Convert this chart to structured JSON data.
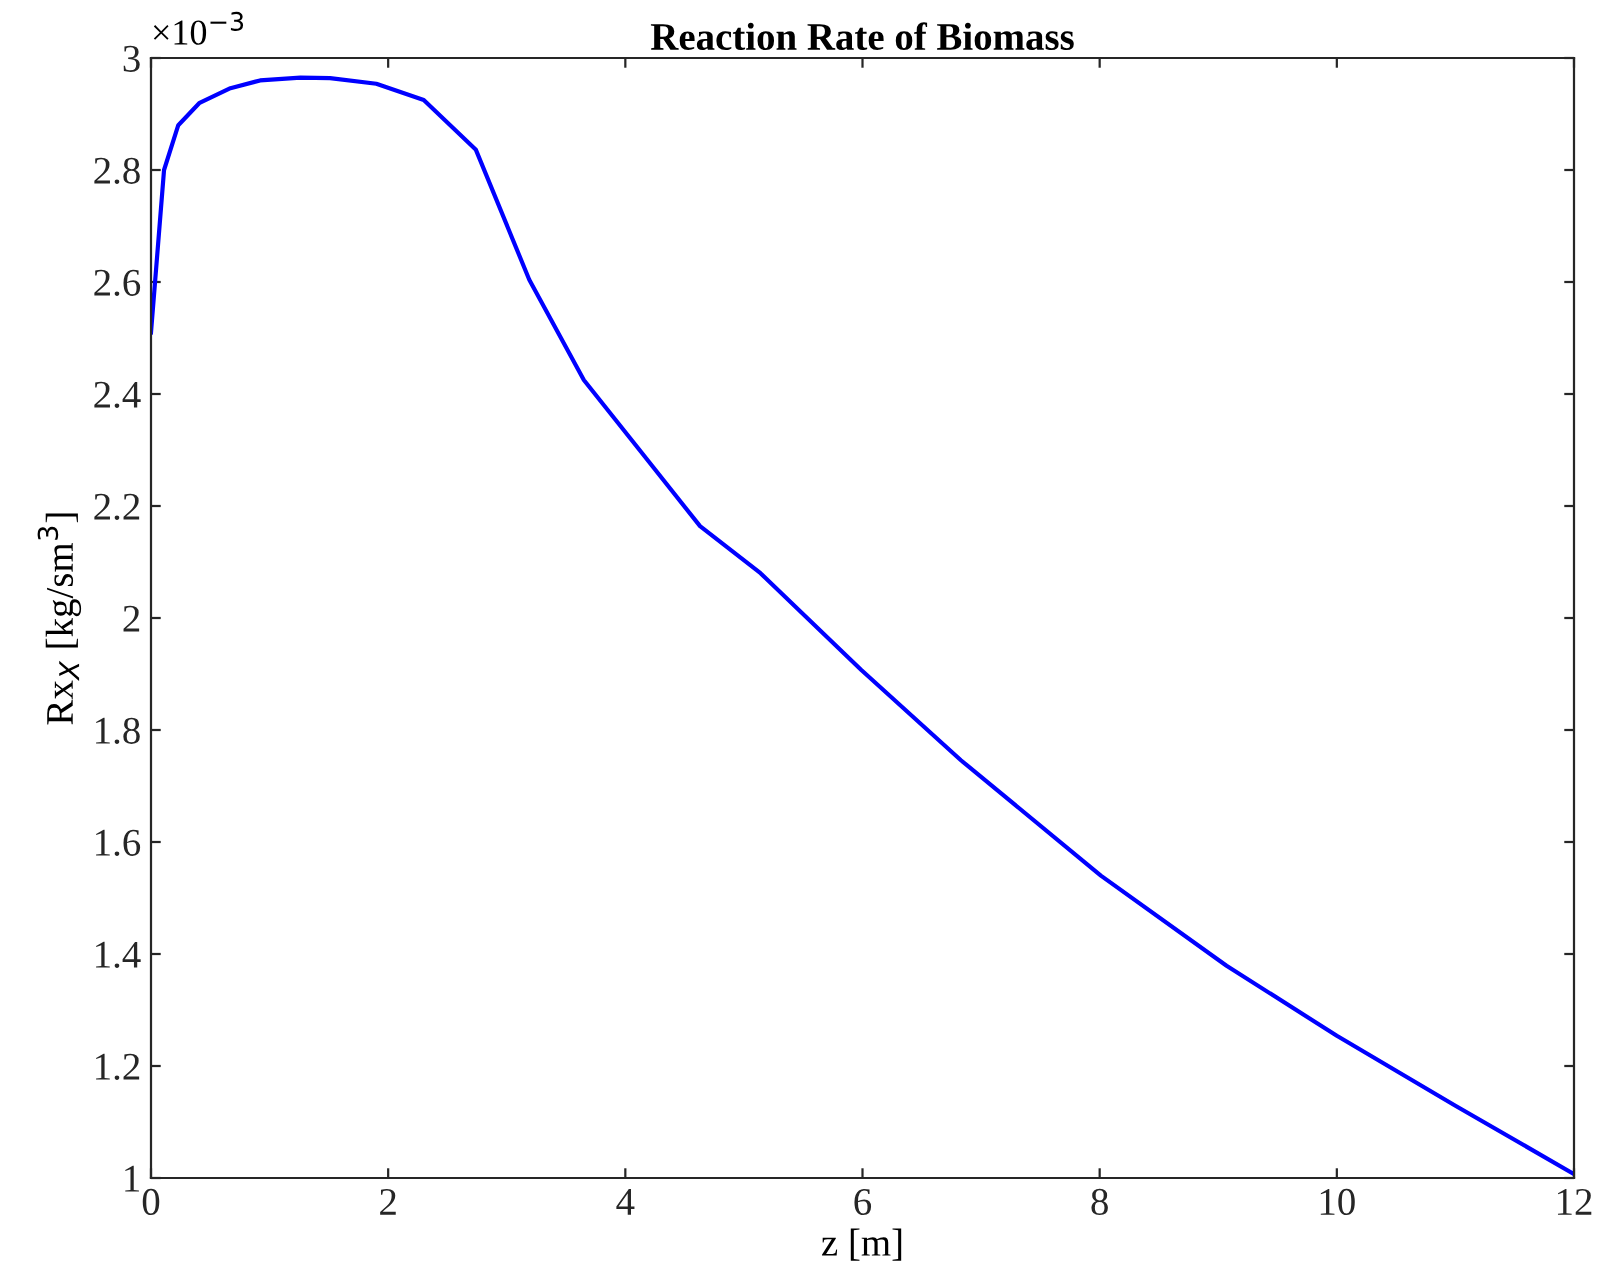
{
  "chart_data": {
    "type": "line",
    "title": "Reaction Rate of Biomass",
    "xlabel": "z [m]",
    "ylabel": "Rx$_{X}$ [kg/sm$^{3}$]",
    "annotations": [
      "×10$^{−3}$"
    ],
    "x": [
      0,
      0.11,
      0.23,
      0.41,
      0.67,
      0.92,
      1.26,
      1.51,
      1.9,
      2.3,
      2.74,
      3.19,
      3.65,
      4.12,
      4.63,
      5.14,
      5.99,
      6.83,
      8.01,
      9.07,
      10.0,
      11.0,
      12
    ],
    "series": [
      {
        "color": "#0000ff",
        "values": [
          2.51,
          2.8,
          2.88,
          2.92,
          2.946,
          2.96,
          2.965,
          2.964,
          2.954,
          2.925,
          2.836,
          2.604,
          2.425,
          2.3,
          2.164,
          2.08,
          1.907,
          1.746,
          1.54,
          1.379,
          1.254,
          1.129,
          1.007
        ]
      }
    ],
    "xlim": [
      0,
      12
    ],
    "ylim": [
      1,
      3
    ],
    "xticks": [
      0,
      2,
      4,
      6,
      8,
      10,
      12
    ],
    "yticks": [
      1,
      1.2,
      1.4,
      1.6,
      1.8,
      2,
      2.2,
      2.4,
      2.6,
      2.8,
      3
    ],
    "grid": false,
    "legend": false,
    "line_style": "solid",
    "marker": "none"
  }
}
